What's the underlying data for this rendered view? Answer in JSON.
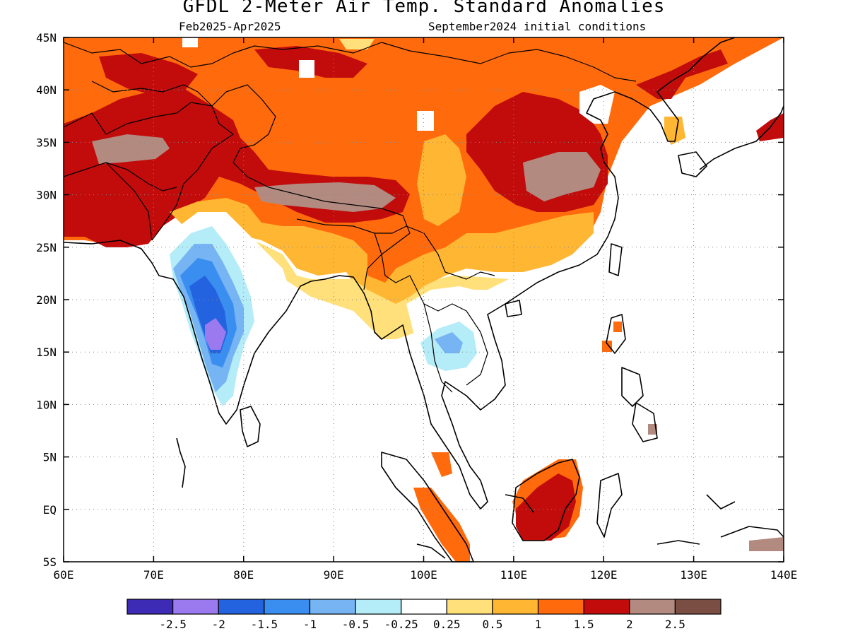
{
  "title": "GFDL 2-Meter Air Temp. Standard Anomalies",
  "subtitle_left": "Feb2025-Apr2025",
  "subtitle_right": "September2024 initial conditions",
  "lon_ticks": [
    "60E",
    "70E",
    "80E",
    "90E",
    "100E",
    "110E",
    "120E",
    "130E",
    "140E"
  ],
  "lat_ticks": [
    "45N",
    "40N",
    "35N",
    "30N",
    "25N",
    "20N",
    "15N",
    "10N",
    "5N",
    "EQ",
    "5S"
  ],
  "colorbar": {
    "colors": [
      "#3d2bb5",
      "#9b7af0",
      "#2463e0",
      "#3a8ef0",
      "#76b4f3",
      "#b4ecf8",
      "#ffffff",
      "#ffe07a",
      "#ffb632",
      "#ff6a0c",
      "#c20c0c",
      "#b28a80",
      "#7a4e42"
    ],
    "labels": [
      "-2.5",
      "-2",
      "-1.5",
      "-1",
      "-0.5",
      "-0.25",
      "0.25",
      "0.5",
      "1",
      "1.5",
      "2",
      "2.5"
    ]
  },
  "legend_colors": {
    "strong_warm": "#c20c0c",
    "warm": "#ff6a0c",
    "mild_warm": "#ffb632",
    "slight_warm": "#ffe07a",
    "extreme_warm": "#b28a80",
    "peak_warm": "#7a4e42",
    "cool": "#76b4f3",
    "cooler": "#3a8ef0",
    "cold": "#2463e0",
    "very_cold": "#9b7af0"
  }
}
